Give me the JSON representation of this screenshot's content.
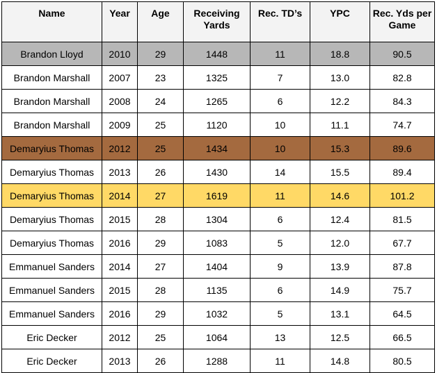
{
  "table": {
    "headers": {
      "name": "Name",
      "year": "Year",
      "age": "Age",
      "receiving_yards": "Receiving Yards",
      "rec_tds": "Rec. TD’s",
      "ypc": "YPC",
      "rec_yds_per_game": "Rec. Yds per Game"
    },
    "rows": [
      {
        "name": "Brandon Lloyd",
        "year": "2010",
        "age": "29",
        "receiving_yards": "1448",
        "rec_tds": "11",
        "ypc": "18.8",
        "rec_yds_per_game": "90.5",
        "highlight": "#b7b7b7"
      },
      {
        "name": "Brandon Marshall",
        "year": "2007",
        "age": "23",
        "receiving_yards": "1325",
        "rec_tds": "7",
        "ypc": "13.0",
        "rec_yds_per_game": "82.8",
        "highlight": ""
      },
      {
        "name": "Brandon Marshall",
        "year": "2008",
        "age": "24",
        "receiving_yards": "1265",
        "rec_tds": "6",
        "ypc": "12.2",
        "rec_yds_per_game": "84.3",
        "highlight": ""
      },
      {
        "name": "Brandon Marshall",
        "year": "2009",
        "age": "25",
        "receiving_yards": "1120",
        "rec_tds": "10",
        "ypc": "11.1",
        "rec_yds_per_game": "74.7",
        "highlight": ""
      },
      {
        "name": "Demaryius Thomas",
        "year": "2012",
        "age": "25",
        "receiving_yards": "1434",
        "rec_tds": "10",
        "ypc": "15.3",
        "rec_yds_per_game": "89.6",
        "highlight": "#a46a3f"
      },
      {
        "name": "Demaryius Thomas",
        "year": "2013",
        "age": "26",
        "receiving_yards": "1430",
        "rec_tds": "14",
        "ypc": "15.5",
        "rec_yds_per_game": "89.4",
        "highlight": ""
      },
      {
        "name": "Demaryius Thomas",
        "year": "2014",
        "age": "27",
        "receiving_yards": "1619",
        "rec_tds": "11",
        "ypc": "14.6",
        "rec_yds_per_game": "101.2",
        "highlight": "#ffd966"
      },
      {
        "name": "Demaryius Thomas",
        "year": "2015",
        "age": "28",
        "receiving_yards": "1304",
        "rec_tds": "6",
        "ypc": "12.4",
        "rec_yds_per_game": "81.5",
        "highlight": ""
      },
      {
        "name": "Demaryius Thomas",
        "year": "2016",
        "age": "29",
        "receiving_yards": "1083",
        "rec_tds": "5",
        "ypc": "12.0",
        "rec_yds_per_game": "67.7",
        "highlight": ""
      },
      {
        "name": "Emmanuel Sanders",
        "year": "2014",
        "age": "27",
        "receiving_yards": "1404",
        "rec_tds": "9",
        "ypc": "13.9",
        "rec_yds_per_game": "87.8",
        "highlight": ""
      },
      {
        "name": "Emmanuel Sanders",
        "year": "2015",
        "age": "28",
        "receiving_yards": "1135",
        "rec_tds": "6",
        "ypc": "14.9",
        "rec_yds_per_game": "75.7",
        "highlight": ""
      },
      {
        "name": "Emmanuel Sanders",
        "year": "2016",
        "age": "29",
        "receiving_yards": "1032",
        "rec_tds": "5",
        "ypc": "13.1",
        "rec_yds_per_game": "64.5",
        "highlight": ""
      },
      {
        "name": "Eric Decker",
        "year": "2012",
        "age": "25",
        "receiving_yards": "1064",
        "rec_tds": "13",
        "ypc": "12.5",
        "rec_yds_per_game": "66.5",
        "highlight": ""
      },
      {
        "name": "Eric Decker",
        "year": "2013",
        "age": "26",
        "receiving_yards": "1288",
        "rec_tds": "11",
        "ypc": "14.8",
        "rec_yds_per_game": "80.5",
        "highlight": ""
      }
    ]
  }
}
